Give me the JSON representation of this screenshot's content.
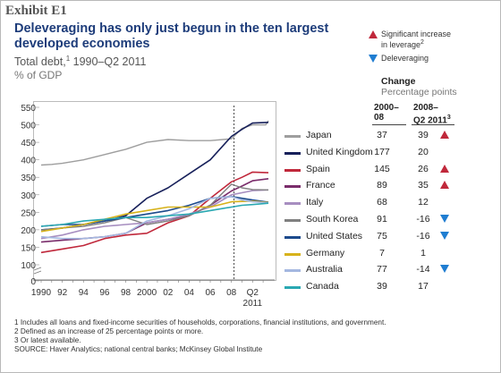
{
  "exhibit": "Exhibit E1",
  "title": "Deleveraging has only just begun in the ten largest developed economies",
  "subtitle_main": "Total debt,",
  "subtitle_sup": "1",
  "subtitle_rest": " 1990–Q2 2011",
  "unit": "% of GDP",
  "key": {
    "sig_line1": "Significant increase",
    "sig_line2": "in leverage",
    "sig_sup": "2",
    "delev": "Deleveraging"
  },
  "change": {
    "heading": "Change",
    "sub": "Percentage points",
    "col1_l1": "2000–",
    "col1_l2": "08",
    "col2_l1": "2008–",
    "col2_l2": "Q2 2011",
    "col2_sup": "3"
  },
  "rows": [
    {
      "country": "Japan",
      "c1": "37",
      "c2": "39",
      "marker": "up"
    },
    {
      "country": "United Kingdom",
      "c1": "177",
      "c2": "20",
      "marker": ""
    },
    {
      "country": "Spain",
      "c1": "145",
      "c2": "26",
      "marker": "up"
    },
    {
      "country": "France",
      "c1": "89",
      "c2": "35",
      "marker": "up"
    },
    {
      "country": "Italy",
      "c1": "68",
      "c2": "12",
      "marker": ""
    },
    {
      "country": "South Korea",
      "c1": "91",
      "c2": "-16",
      "marker": "down"
    },
    {
      "country": "United States",
      "c1": "75",
      "c2": "-16",
      "marker": "down"
    },
    {
      "country": "Germany",
      "c1": "7",
      "c2": "1",
      "marker": ""
    },
    {
      "country": "Australia",
      "c1": "77",
      "c2": "-14",
      "marker": "down"
    },
    {
      "country": "Canada",
      "c1": "39",
      "c2": "17",
      "marker": ""
    }
  ],
  "footnotes": {
    "fn1": "1  Includes all loans and fixed-income securities of households, corporations, financial institutions, and government.",
    "fn2": "2  Defined as an increase of 25 percentage points or more.",
    "fn3": "3  Or latest available.",
    "source": "SOURCE: Haver Analytics; national central banks; McKinsey Global Institute"
  },
  "chart_data": {
    "type": "line",
    "ylim": [
      0,
      550
    ],
    "xlim": [
      1990,
      2011.5
    ],
    "yticks": [
      0,
      100,
      150,
      200,
      250,
      300,
      350,
      400,
      450,
      500,
      550
    ],
    "xtick_labels": [
      {
        "x": 1990,
        "label": "1990"
      },
      {
        "x": 1992,
        "label": "92"
      },
      {
        "x": 1994,
        "label": "94"
      },
      {
        "x": 1996,
        "label": "96"
      },
      {
        "x": 1998,
        "label": "98"
      },
      {
        "x": 2000,
        "label": "2000"
      },
      {
        "x": 2002,
        "label": "02"
      },
      {
        "x": 2004,
        "label": "04"
      },
      {
        "x": 2006,
        "label": "06"
      },
      {
        "x": 2008,
        "label": "08"
      },
      {
        "x": 2010,
        "label": "Q2"
      }
    ],
    "xtick_extra": "2011",
    "reference_line_x": 2008.25,
    "colors": {
      "Japan": "#9e9e9e",
      "United Kingdom": "#17205a",
      "Spain": "#c0283b",
      "France": "#7a2d6b",
      "Italy": "#a78ec0",
      "South Korea": "#808080",
      "United States": "#1c4a8c",
      "Germany": "#d7b21a",
      "Australia": "#a4b8e0",
      "Canada": "#2aa8b2"
    },
    "series": [
      {
        "name": "Japan",
        "x": [
          1990,
          1991,
          1992,
          1994,
          1996,
          1998,
          2000,
          2002,
          2004,
          2006,
          2008,
          2009,
          2010,
          2011.25,
          2011.5
        ],
        "values": [
          385,
          387,
          390,
          400,
          415,
          430,
          450,
          458,
          455,
          455,
          460,
          490,
          500,
          500,
          512
        ]
      },
      {
        "name": "United Kingdom",
        "x": [
          1990,
          1992,
          1994,
          1996,
          1998,
          2000,
          2002,
          2004,
          2006,
          2008,
          2009,
          2010,
          2011.5
        ],
        "values": [
          200,
          205,
          215,
          225,
          240,
          290,
          320,
          360,
          400,
          467,
          487,
          505,
          507
        ]
      },
      {
        "name": "Spain",
        "x": [
          1990,
          1992,
          1994,
          1996,
          1998,
          2000,
          2002,
          2004,
          2006,
          2008,
          2009,
          2010,
          2011.5
        ],
        "values": [
          135,
          145,
          155,
          175,
          185,
          190,
          220,
          240,
          290,
          337,
          350,
          365,
          363
        ]
      },
      {
        "name": "France",
        "x": [
          1990,
          1992,
          1994,
          1996,
          1998,
          2000,
          2002,
          2004,
          2006,
          2008,
          2009,
          2010,
          2011.5
        ],
        "values": [
          165,
          170,
          175,
          180,
          190,
          220,
          230,
          240,
          270,
          311,
          325,
          340,
          346
        ]
      },
      {
        "name": "Italy",
        "x": [
          1990,
          1992,
          1994,
          1996,
          1998,
          2000,
          2002,
          2004,
          2006,
          2008,
          2010,
          2011.5
        ],
        "values": [
          175,
          185,
          200,
          210,
          215,
          220,
          230,
          245,
          265,
          300,
          312,
          314
        ]
      },
      {
        "name": "South Korea",
        "x": [
          1990,
          1992,
          1994,
          1996,
          1998,
          2000,
          2002,
          2004,
          2006,
          2008,
          2009,
          2010,
          2011.5
        ],
        "values": [
          200,
          205,
          210,
          220,
          235,
          215,
          225,
          240,
          270,
          330,
          320,
          315,
          314
        ]
      },
      {
        "name": "United States",
        "x": [
          1990,
          1992,
          1994,
          1996,
          1998,
          2000,
          2002,
          2004,
          2006,
          2008,
          2009,
          2010,
          2011.5
        ],
        "values": [
          210,
          215,
          215,
          225,
          235,
          245,
          255,
          270,
          290,
          295,
          290,
          285,
          279
        ]
      },
      {
        "name": "Germany",
        "x": [
          1990,
          1992,
          1994,
          1996,
          1998,
          2000,
          2002,
          2004,
          2006,
          2008,
          2010,
          2011.5
        ],
        "values": [
          195,
          205,
          215,
          230,
          245,
          255,
          265,
          265,
          265,
          280,
          282,
          278
        ]
      },
      {
        "name": "Australia",
        "x": [
          1990,
          1992,
          1994,
          1996,
          1998,
          2000,
          2002,
          2004,
          2006,
          2008,
          2009,
          2010,
          2011.5
        ],
        "values": [
          180,
          175,
          175,
          180,
          190,
          225,
          240,
          260,
          290,
          295,
          285,
          280,
          277
        ]
      },
      {
        "name": "Canada",
        "x": [
          1990,
          1992,
          1994,
          1996,
          1998,
          2000,
          2002,
          2004,
          2006,
          2008,
          2009,
          2010,
          2011.5
        ],
        "values": [
          210,
          215,
          225,
          230,
          235,
          235,
          240,
          245,
          255,
          265,
          270,
          272,
          276
        ]
      }
    ]
  }
}
